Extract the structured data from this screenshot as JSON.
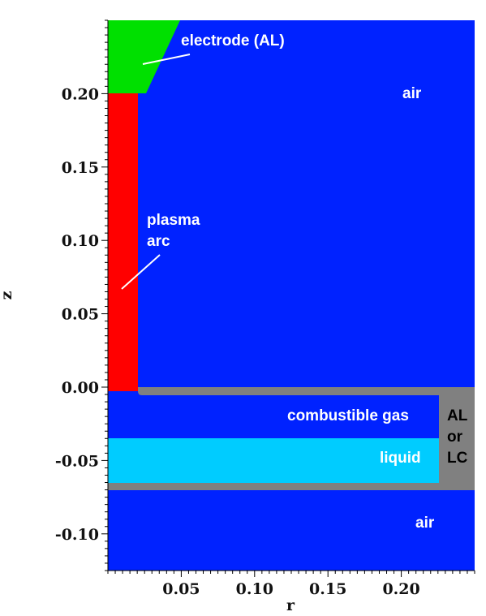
{
  "axes": {
    "x_label": "r",
    "y_label": "z",
    "x_range": [
      0.0,
      0.25
    ],
    "y_range": [
      -0.125,
      0.25
    ],
    "x_ticks": [
      {
        "value": 0.05,
        "label": "0.05"
      },
      {
        "value": 0.1,
        "label": "0.10"
      },
      {
        "value": 0.15,
        "label": "0.15"
      },
      {
        "value": 0.2,
        "label": "0.20"
      }
    ],
    "y_ticks": [
      {
        "value": 0.2,
        "label": "0.20"
      },
      {
        "value": 0.15,
        "label": "0.15"
      },
      {
        "value": 0.1,
        "label": "0.10"
      },
      {
        "value": 0.05,
        "label": "0.05"
      },
      {
        "value": 0.0,
        "label": "0.00"
      },
      {
        "value": -0.05,
        "label": "-0.05"
      },
      {
        "value": -0.1,
        "label": "-0.10"
      }
    ],
    "minor_tick_step": 0.005
  },
  "colors": {
    "air": "#0022ff",
    "electrode": "#00e000",
    "plasma": "#ff0000",
    "wall": "#808080",
    "liquid": "#00ccff",
    "label_light": "#ffffff",
    "label_dark": "#000000"
  },
  "labels": {
    "electrode": "electrode (AL)",
    "air_top": "air",
    "plasma_line1": "plasma",
    "plasma_line2": "arc",
    "combustible_gas": "combustible gas",
    "liquid": "liquid",
    "wall_line1": "AL",
    "wall_line2": "or",
    "wall_line3": "LC",
    "air_bottom": "air"
  }
}
